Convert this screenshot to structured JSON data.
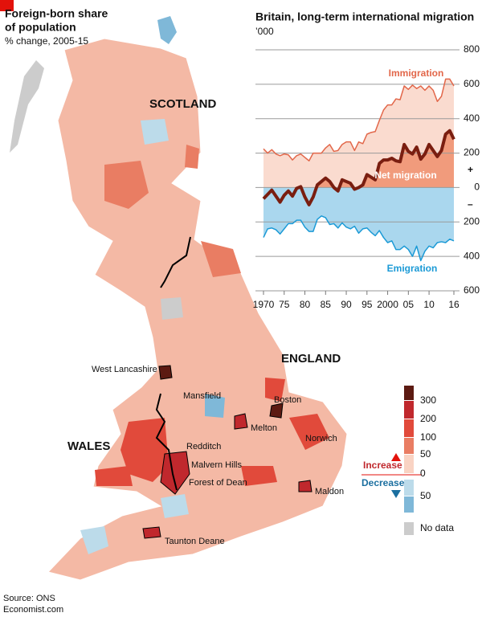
{
  "map": {
    "title": [
      "Foreign-born share",
      "of population"
    ],
    "subtitle": "% change, 2005-15",
    "regions": [
      "SCOTLAND",
      "ENGLAND",
      "WALES"
    ],
    "places": [
      "West Lancashire",
      "Mansfield",
      "Boston",
      "Melton",
      "Norwich",
      "Redditch",
      "Malvern Hills",
      "Forest of Dean",
      "Maldon",
      "Taunton Deane"
    ],
    "legend": {
      "ticks": [
        300,
        200,
        100,
        50,
        0,
        {
          "value": -50,
          "label": "50"
        }
      ],
      "increase": "Increase",
      "decrease": "Decrease",
      "no_data": "No data"
    },
    "source": "Source: ONS",
    "credit": "Economist.com"
  },
  "chart_data": {
    "type": "line",
    "title": "Britain, long-term international migration",
    "subtitle": "’000",
    "x": [
      1970,
      1971,
      1972,
      1973,
      1974,
      1975,
      1976,
      1977,
      1978,
      1979,
      1980,
      1981,
      1982,
      1983,
      1984,
      1985,
      1986,
      1987,
      1988,
      1989,
      1990,
      1991,
      1992,
      1993,
      1994,
      1995,
      1996,
      1997,
      1998,
      1999,
      2000,
      2001,
      2002,
      2003,
      2004,
      2005,
      2006,
      2007,
      2008,
      2009,
      2010,
      2011,
      2012,
      2013,
      2014,
      2015,
      2016
    ],
    "series": [
      {
        "name": "Immigration",
        "color": "#e2674a",
        "fill": "#fadbcf",
        "values": [
          225,
          200,
          220,
          195,
          185,
          195,
          190,
          160,
          185,
          195,
          175,
          155,
          200,
          200,
          200,
          230,
          250,
          210,
          215,
          250,
          265,
          265,
          215,
          265,
          255,
          310,
          320,
          325,
          390,
          450,
          480,
          480,
          515,
          510,
          590,
          570,
          595,
          575,
          590,
          565,
          590,
          565,
          500,
          530,
          630,
          630,
          590
        ]
      },
      {
        "name": "Emigration",
        "color": "#1b9ad6",
        "fill": "#aad7ee",
        "values": [
          -290,
          -240,
          -235,
          -245,
          -270,
          -240,
          -210,
          -210,
          -190,
          -190,
          -230,
          -255,
          -255,
          -185,
          -165,
          -175,
          -215,
          -210,
          -235,
          -205,
          -230,
          -240,
          -225,
          -265,
          -240,
          -235,
          -260,
          -280,
          -250,
          -290,
          -320,
          -310,
          -360,
          -360,
          -340,
          -360,
          -400,
          -340,
          -425,
          -370,
          -340,
          -350,
          -320,
          -315,
          -320,
          -300,
          -310
        ]
      },
      {
        "name": "Net migration",
        "color": "#7a1e10",
        "fill": "#f19b7c",
        "values": [
          -65,
          -40,
          -15,
          -50,
          -85,
          -45,
          -20,
          -50,
          -5,
          5,
          -55,
          -100,
          -55,
          15,
          35,
          55,
          35,
          0,
          -20,
          45,
          35,
          25,
          -10,
          0,
          15,
          75,
          60,
          45,
          140,
          160,
          160,
          170,
          155,
          150,
          250,
          210,
          195,
          235,
          165,
          195,
          250,
          215,
          180,
          215,
          310,
          330,
          280
        ]
      }
    ],
    "xlim": [
      1970,
      2016
    ],
    "xticks": [
      1970,
      {
        "value": 1975,
        "label": "75"
      },
      {
        "value": 1980,
        "label": "80"
      },
      {
        "value": 1985,
        "label": "85"
      },
      {
        "value": 1990,
        "label": "90"
      },
      {
        "value": 1995,
        "label": "95"
      },
      2000,
      {
        "value": 2005,
        "label": "05"
      },
      {
        "value": 2010,
        "label": "10"
      },
      {
        "value": 2016,
        "label": "16"
      }
    ],
    "ylim": [
      -600,
      800
    ],
    "yticks": [
      {
        "value": -600,
        "label": "600"
      },
      {
        "value": -400,
        "label": "400"
      },
      {
        "value": -200,
        "label": "200"
      },
      0,
      200,
      400,
      600,
      800
    ],
    "annotations": [
      "+",
      "–"
    ],
    "grid": true
  }
}
